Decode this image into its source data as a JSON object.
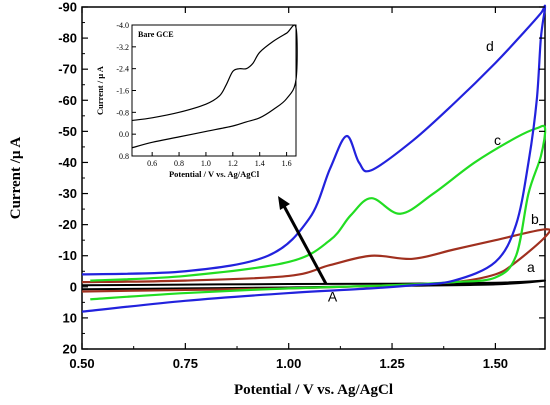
{
  "chart_data": [
    {
      "type": "line",
      "title": "",
      "xlabel": "Potential / V vs. Ag/AgCl",
      "ylabel": "Current /µ A",
      "xlim": [
        0.5,
        1.62
      ],
      "ylim": [
        20,
        -90
      ],
      "y_axis_inverted": true,
      "grid": false,
      "x_ticks": [
        "0.50",
        "0.75",
        "1.00",
        "1.25",
        "1.50"
      ],
      "x_tick_values": [
        0.5,
        0.75,
        1.0,
        1.25,
        1.5
      ],
      "y_ticks": [
        "-90",
        "-80",
        "-70",
        "-60",
        "-50",
        "-40",
        "-30",
        "-20",
        "-10",
        "0",
        "10",
        "20"
      ],
      "y_tick_values": [
        -90,
        -80,
        -70,
        -60,
        -50,
        -40,
        -30,
        -20,
        -10,
        0,
        10,
        20
      ],
      "series": [
        {
          "name": "a",
          "color": "#000000",
          "x": [
            0.5,
            0.75,
            1.0,
            1.25,
            1.5,
            1.62,
            1.5,
            1.25,
            1.0,
            0.75,
            0.5
          ],
          "values": [
            -0.5,
            -0.7,
            -0.9,
            -1.0,
            -1.3,
            -2.0,
            -0.8,
            -0.3,
            0.2,
            0.5,
            0.8
          ]
        },
        {
          "name": "b",
          "color": "#a0301f",
          "x": [
            0.5,
            0.75,
            1.0,
            1.1,
            1.2,
            1.3,
            1.4,
            1.5,
            1.62,
            1.62,
            1.55,
            1.5,
            1.4,
            1.25,
            1.0,
            0.75,
            0.5
          ],
          "values": [
            -1.5,
            -2.0,
            -3.5,
            -7.0,
            -10.0,
            -9.0,
            -12.0,
            -15.0,
            -18.5,
            -16.0,
            -8.0,
            -4.0,
            -1.5,
            -0.5,
            0.5,
            1.0,
            1.5
          ]
        },
        {
          "name": "c",
          "color": "#22dd22",
          "x": [
            0.52,
            0.75,
            1.0,
            1.1,
            1.15,
            1.2,
            1.27,
            1.35,
            1.45,
            1.55,
            1.6,
            1.62,
            1.61,
            1.58,
            1.55,
            1.5,
            1.4,
            1.25,
            1.0,
            0.75,
            0.52
          ],
          "values": [
            -2.0,
            -3.5,
            -8.0,
            -15.0,
            -23.0,
            -28.5,
            -23.5,
            -30.0,
            -40.0,
            -48.0,
            -51.0,
            -51.0,
            -42.0,
            -30.0,
            -10.0,
            -3.0,
            -1.5,
            -0.5,
            0.5,
            2.0,
            4.0
          ]
        },
        {
          "name": "d",
          "color": "#2222dd",
          "x": [
            0.5,
            0.75,
            0.95,
            1.05,
            1.1,
            1.14,
            1.17,
            1.2,
            1.3,
            1.4,
            1.5,
            1.57,
            1.61,
            1.62,
            1.61,
            1.6,
            1.58,
            1.55,
            1.5,
            1.4,
            1.3,
            1.2,
            1.0,
            0.75,
            0.5
          ],
          "values": [
            -4.0,
            -5.0,
            -10.0,
            -22.0,
            -38.0,
            -48.5,
            -40.0,
            -37.5,
            -47.0,
            -59.0,
            -72.0,
            -82.0,
            -88.0,
            -90.0,
            -80.0,
            -60.0,
            -40.0,
            -20.0,
            -8.0,
            -2.0,
            -0.5,
            0.5,
            2.0,
            4.5,
            8.0
          ]
        }
      ],
      "curve_labels": [
        "a",
        "b",
        "c",
        "d"
      ],
      "annotations": [
        "A"
      ]
    },
    {
      "type": "line",
      "title": "Bare GCE",
      "xlabel": "Potential / V vs. Ag/AgCl",
      "ylabel": "Current / µ A",
      "xlim": [
        0.45,
        1.67
      ],
      "ylim": [
        0.8,
        -4.0
      ],
      "y_axis_inverted": true,
      "grid": false,
      "x_ticks": [
        "0.6",
        "0.8",
        "1.0",
        "1.2",
        "1.4",
        "1.6"
      ],
      "x_tick_values": [
        0.6,
        0.8,
        1.0,
        1.2,
        1.4,
        1.6
      ],
      "y_ticks": [
        "-4.0",
        "-3.2",
        "-2.4",
        "-1.6",
        "-0.8",
        "0.0",
        "0.8"
      ],
      "y_tick_values": [
        -4.0,
        -3.2,
        -2.4,
        -1.6,
        -0.8,
        0.0,
        0.8
      ],
      "series": [
        {
          "name": "",
          "color": "#000000",
          "x": [
            0.45,
            0.6,
            0.8,
            1.0,
            1.1,
            1.15,
            1.2,
            1.25,
            1.3,
            1.35,
            1.4,
            1.5,
            1.6,
            1.67,
            1.67,
            1.6,
            1.5,
            1.4,
            1.3,
            1.2,
            1.0,
            0.8,
            0.6,
            0.45
          ],
          "values": [
            -0.5,
            -0.6,
            -0.8,
            -1.1,
            -1.4,
            -1.8,
            -2.3,
            -2.4,
            -2.4,
            -2.6,
            -3.0,
            -3.4,
            -3.7,
            -3.9,
            -2.0,
            -1.3,
            -0.9,
            -0.6,
            -0.45,
            -0.3,
            -0.1,
            0.1,
            0.3,
            0.5
          ]
        }
      ]
    }
  ]
}
